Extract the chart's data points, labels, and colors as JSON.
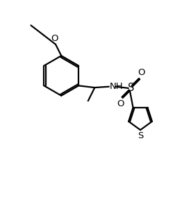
{
  "bg_color": "#ffffff",
  "line_color": "#000000",
  "text_color": "#000000",
  "line_width": 1.6,
  "font_size": 9.5,
  "figsize": [
    2.75,
    3.11
  ],
  "dpi": 100,
  "xlim": [
    0,
    10
  ],
  "ylim": [
    0,
    11
  ]
}
